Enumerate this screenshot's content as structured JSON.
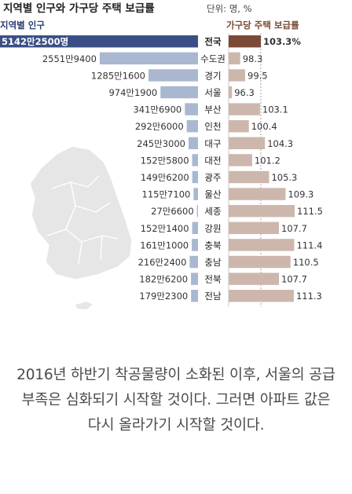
{
  "chart_data": {
    "type": "bar",
    "title": "지역별 인구와 가구당 주택 보급률",
    "unit_note": "단위: 명, %",
    "left_panel_title": "지역별 인구",
    "right_panel_title": "가구당 주택 보급률",
    "regions": [
      "전국",
      "수도권",
      "경기",
      "서울",
      "부산",
      "인천",
      "대구",
      "대전",
      "광주",
      "울산",
      "세종",
      "강원",
      "충북",
      "충남",
      "전북",
      "전남"
    ],
    "series": [
      {
        "name": "지역별 인구",
        "values": [
          51422500,
          25519400,
          12851600,
          9741900,
          3416900,
          2926000,
          2453000,
          1525800,
          1496200,
          1157100,
          276600,
          1521400,
          1611000,
          2162400,
          1826200,
          1792300
        ],
        "labels": [
          "5142만2500명",
          "2551만9400",
          "1285만1600",
          "974만1900",
          "341만6900",
          "292만6000",
          "245만3000",
          "152만5800",
          "149만6200",
          "115만7100",
          "27만6600",
          "152만1400",
          "161만1000",
          "216만2400",
          "182만6200",
          "179만2300"
        ]
      },
      {
        "name": "가구당 주택 보급률",
        "values": [
          103.3,
          98.3,
          99.5,
          96.3,
          103.1,
          100.4,
          104.3,
          101.2,
          105.3,
          109.3,
          111.5,
          107.7,
          111.4,
          110.5,
          107.7,
          111.3
        ],
        "labels": [
          "103.3%",
          "98.3",
          "99.5",
          "96.3",
          "103.1",
          "100.4",
          "104.3",
          "101.2",
          "105.3",
          "109.3",
          "111.5",
          "107.7",
          "111.4",
          "110.5",
          "107.7",
          "111.3"
        ]
      }
    ],
    "colors": {
      "pop_highlight": "#3b4f86",
      "pop_bar": "#a9b7d1",
      "rate_highlight": "#7a4a36",
      "rate_bar": "#cdb7ad",
      "map": "#e6e6e6"
    }
  },
  "caption": "2016년 하반기 착공물량이 소화된 이후, 서울의 공급 부족은 심화되기 시작할 것이다. 그러면 아파트 값은 다시 올라가기 시작할 것이다."
}
